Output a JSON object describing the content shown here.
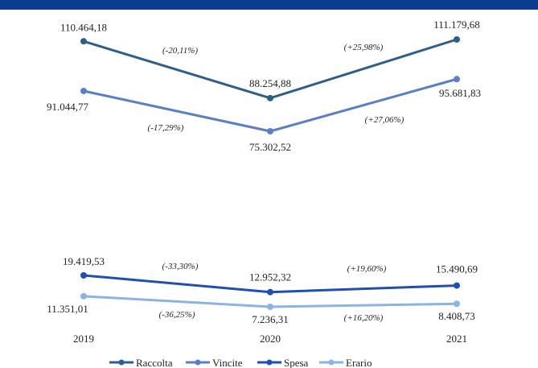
{
  "chart_data": {
    "type": "line",
    "categories": [
      "2019",
      "2020",
      "2021"
    ],
    "grid": false,
    "legend_placement": "bottom",
    "series": [
      {
        "name": "Raccolta",
        "color": "#2e5f8a",
        "values": [
          110464.18,
          88254.88,
          111179.68
        ],
        "value_labels": [
          "110.464,18",
          "88.254,88",
          "111.179,68"
        ],
        "change_labels": [
          "(-20,11%)",
          "(+25,98%)"
        ]
      },
      {
        "name": "Vincite",
        "color": "#5a7fc4",
        "values": [
          91044.77,
          75302.52,
          95681.83
        ],
        "value_labels": [
          "91.044,77",
          "75.302,52",
          "95.681,83"
        ],
        "change_labels": [
          "(-17,29%)",
          "(+27,06%)"
        ]
      },
      {
        "name": "Spesa",
        "color": "#1f4fb0",
        "values": [
          19419.53,
          12952.32,
          15490.69
        ],
        "value_labels": [
          "19.419,53",
          "12.952,32",
          "15.490,69"
        ],
        "change_labels": [
          "(-33,30%)",
          "(+19,60%)"
        ]
      },
      {
        "name": "Erario",
        "color": "#8db3e2",
        "values": [
          11351.01,
          7236.31,
          8408.73
        ],
        "value_labels": [
          "11.351,01",
          "7.236,31",
          "8.408,73"
        ],
        "change_labels": [
          "(-36,25%)",
          "(+16,20%)"
        ]
      }
    ]
  }
}
